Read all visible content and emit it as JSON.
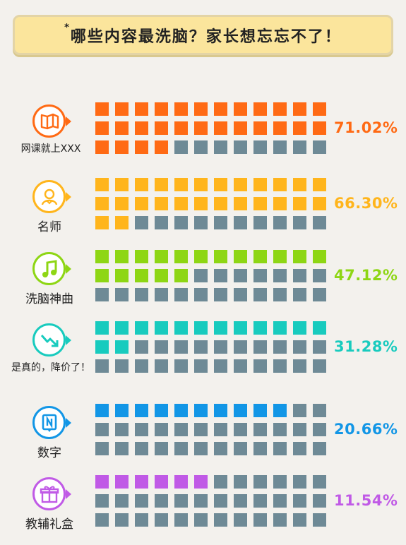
{
  "title": {
    "mark": "*",
    "text": "哪些内容最洗脑？家长想忘忘不了！"
  },
  "colors": {
    "inactive": "#6e8a96",
    "background": "#f3f1ed",
    "title_bg": "#fbe59c"
  },
  "chart_data": {
    "type": "waffle",
    "units_per_row": 36,
    "categories": [
      "网课就上XXX",
      "名师",
      "洗脑神曲",
      "是真的，降价了！",
      "数字",
      "教辅礼盒"
    ],
    "values": [
      71.02,
      66.3,
      47.12,
      31.28,
      20.66,
      11.54
    ],
    "filled_cells": [
      28,
      26,
      17,
      14,
      10,
      6
    ],
    "colors": [
      "#ff6a14",
      "#ffb51c",
      "#8ed614",
      "#18cbbe",
      "#1296e6",
      "#c05ae6"
    ],
    "icons": [
      "book-icon",
      "teacher-icon",
      "music-note-icon",
      "price-down-icon",
      "number-icon",
      "gift-icon"
    ],
    "labels": [
      "71.02%",
      "66.30%",
      "47.12%",
      "31.28%",
      "20.66%",
      "11.54%"
    ]
  }
}
